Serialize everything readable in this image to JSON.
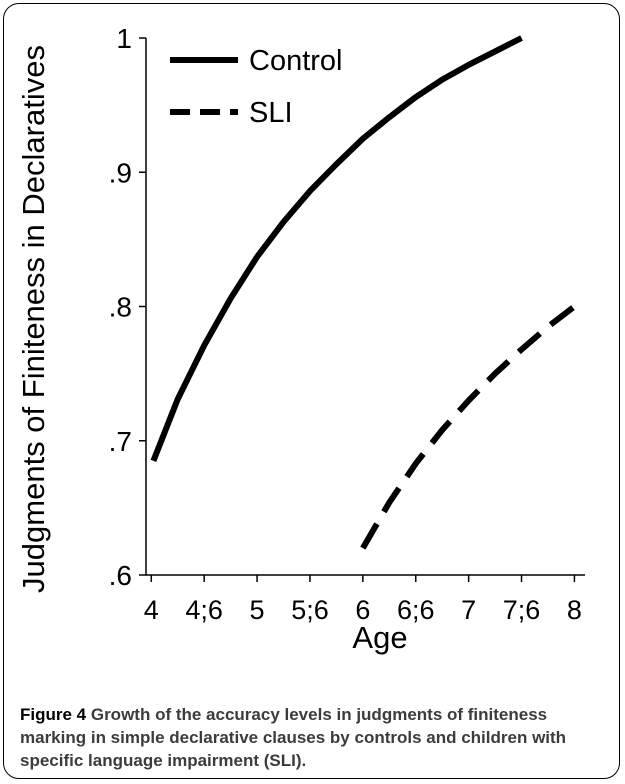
{
  "chart_data": {
    "type": "line",
    "xlabel": "Age",
    "ylabel": "Judgments of Finiteness in Declaratives",
    "x_ticks": [
      4,
      4.5,
      5,
      5.5,
      6,
      6.5,
      7,
      7.5,
      8
    ],
    "x_tick_labels": [
      "4",
      "4;6",
      "5",
      "5;6",
      "6",
      "6;6",
      "7",
      "7;6",
      "8"
    ],
    "y_ticks": [
      0.6,
      0.7,
      0.8,
      0.9,
      1.0
    ],
    "y_tick_labels": [
      ".6",
      ".7",
      ".8",
      ".9",
      "1"
    ],
    "xlim": [
      3.95,
      8.1
    ],
    "ylim": [
      0.6,
      1.0
    ],
    "grid": false,
    "legend_position": "top-left",
    "series": [
      {
        "name": "Control",
        "style": "solid",
        "x": [
          4.02,
          4.25,
          4.5,
          4.75,
          5.0,
          5.25,
          5.5,
          5.75,
          6.0,
          6.25,
          6.5,
          6.75,
          7.0,
          7.25,
          7.5
        ],
        "y": [
          0.685,
          0.731,
          0.771,
          0.806,
          0.837,
          0.863,
          0.886,
          0.906,
          0.925,
          0.941,
          0.956,
          0.969,
          0.98,
          0.99,
          1.0
        ]
      },
      {
        "name": "SLI",
        "style": "dashed",
        "x": [
          6.0,
          6.25,
          6.5,
          6.75,
          7.0,
          7.25,
          7.5,
          7.75,
          8.0
        ],
        "y": [
          0.62,
          0.654,
          0.683,
          0.708,
          0.73,
          0.75,
          0.768,
          0.785,
          0.8
        ]
      }
    ]
  },
  "caption": {
    "label": "Figure 4",
    "text": " Growth of the accuracy levels in judgments of finiteness marking in simple declarative clauses by controls and children with specific language impairment (SLI)."
  }
}
